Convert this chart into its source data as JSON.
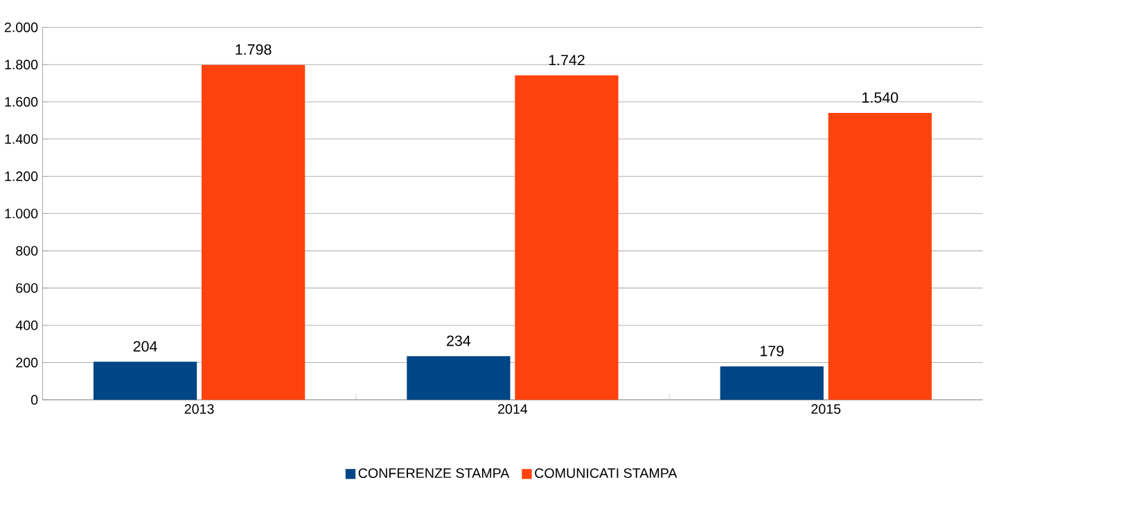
{
  "chart_data": {
    "type": "bar",
    "categories": [
      "2013",
      "2014",
      "2015"
    ],
    "series": [
      {
        "name": "CONFERENZE STAMPA",
        "color": "#004586",
        "values": [
          204,
          234,
          179
        ],
        "value_labels": [
          "204",
          "234",
          "179"
        ]
      },
      {
        "name": "COMUNICATI STAMPA",
        "color": "#ff420e",
        "values": [
          1798,
          1742,
          1540
        ],
        "value_labels": [
          "1.798",
          "1.742",
          "1.540"
        ]
      }
    ],
    "ylim": [
      0,
      2000
    ],
    "yticks": [
      0,
      200,
      400,
      600,
      800,
      {
        "value": 1000,
        "label": "1.000"
      },
      {
        "value": 1200,
        "label": "1.200"
      },
      {
        "value": 1400,
        "label": "1.400"
      },
      {
        "value": 1600,
        "label": "1.600"
      },
      {
        "value": 1800,
        "label": "1.800"
      },
      {
        "value": 2000,
        "label": "2.000"
      }
    ],
    "grid": "y",
    "legend": "bottom"
  }
}
